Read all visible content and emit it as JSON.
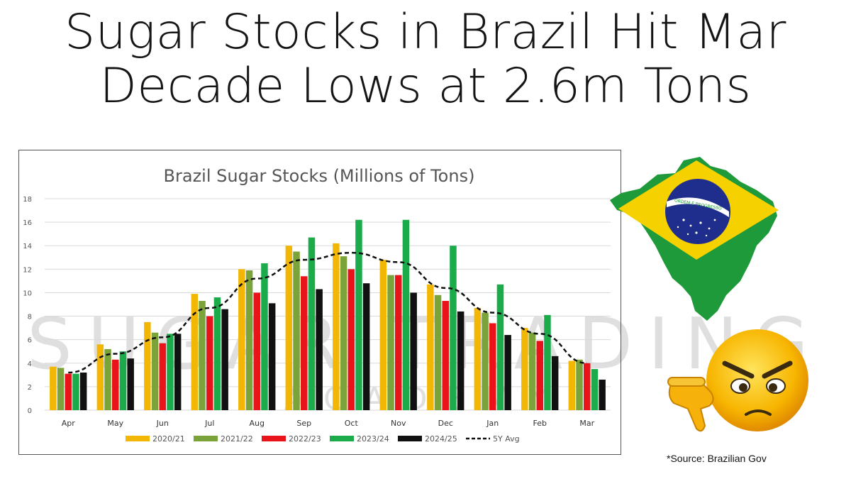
{
  "headline": {
    "line1": "Sugar Stocks in Brazil Hit Mar",
    "line2": "Decade Lows at 2.6m Tons"
  },
  "watermark": {
    "main": "SUGAR TRADING",
    "sub": "ACADEMY"
  },
  "source_note": "*Source: Brazilian Gov",
  "flag": {
    "banner_text": "ORDEM E PROGRESSO",
    "green": "#1f9a3a",
    "yellow": "#f5d100",
    "blue": "#1f2d8c"
  },
  "decorations": {
    "map_icon": "brazil-map-flag-icon",
    "emoji_icon": "angry-emoji-icon",
    "thumb_icon": "thumbs-down-icon"
  },
  "chart_data": {
    "type": "bar",
    "title": "Brazil Sugar Stocks (Millions of Tons)",
    "xlabel": "",
    "ylabel": "",
    "ylim": [
      0,
      18
    ],
    "yticks": [
      0,
      2,
      4,
      6,
      8,
      10,
      12,
      14,
      16,
      18
    ],
    "grid": true,
    "legend_position": "bottom",
    "categories": [
      "Apr",
      "May",
      "Jun",
      "Jul",
      "Aug",
      "Sep",
      "Oct",
      "Nov",
      "Dec",
      "Jan",
      "Feb",
      "Mar"
    ],
    "series": [
      {
        "name": "2020/21",
        "color": "#f2b705",
        "values": [
          3.7,
          5.6,
          7.5,
          9.9,
          12.0,
          14.0,
          14.2,
          12.8,
          10.7,
          8.7,
          7.0,
          4.2
        ]
      },
      {
        "name": "2021/22",
        "color": "#7aa33a",
        "values": [
          3.6,
          5.2,
          6.6,
          9.3,
          11.9,
          13.5,
          13.1,
          11.5,
          9.8,
          8.3,
          6.6,
          4.3
        ]
      },
      {
        "name": "2022/23",
        "color": "#e8141a",
        "values": [
          3.1,
          4.3,
          5.7,
          8.0,
          10.0,
          11.4,
          12.0,
          11.5,
          9.3,
          7.4,
          5.9,
          4.0
        ]
      },
      {
        "name": "2023/24",
        "color": "#1bab4b",
        "values": [
          3.1,
          5.0,
          6.5,
          9.6,
          12.5,
          14.7,
          16.2,
          16.2,
          14.0,
          10.7,
          8.1,
          3.5
        ]
      },
      {
        "name": "2024/25",
        "color": "#111111",
        "values": [
          3.2,
          4.4,
          6.5,
          8.6,
          9.1,
          10.3,
          10.8,
          10.0,
          8.4,
          6.4,
          4.6,
          2.6
        ]
      }
    ],
    "line_series": {
      "name": "5Y Avg",
      "color": "#111111",
      "style": "dashed",
      "values": [
        3.2,
        4.8,
        6.2,
        8.7,
        11.2,
        12.8,
        13.4,
        12.6,
        10.4,
        8.3,
        6.5,
        4.0
      ]
    }
  }
}
